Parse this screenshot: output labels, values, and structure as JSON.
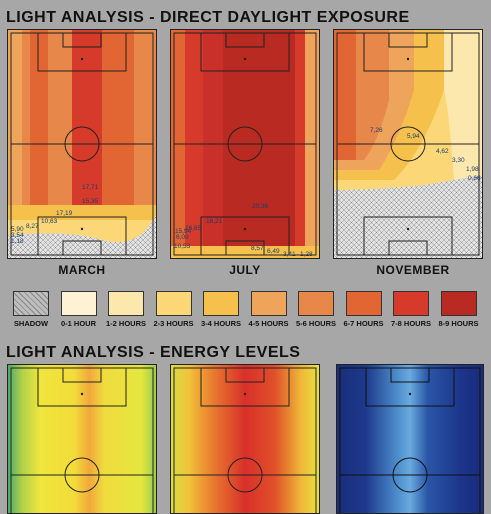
{
  "direct_title": "LIGHT ANALYSIS - DIRECT DAYLIGHT EXPOSURE",
  "energy_title": "LIGHT ANALYSIS - ENERGY LEVELS",
  "months": [
    "MARCH",
    "JULY",
    "NOVEMBER"
  ],
  "legend": [
    {
      "label": "SHADOW",
      "color": "#dcdcdc"
    },
    {
      "label": "0-1 HOUR",
      "color": "#fdf2d4"
    },
    {
      "label": "1-2 HOURS",
      "color": "#fce7ad"
    },
    {
      "label": "2-3 HOURS",
      "color": "#fbd777"
    },
    {
      "label": "3-4 HOURS",
      "color": "#f6c04d"
    },
    {
      "label": "4-5 HOURS",
      "color": "#eea45a"
    },
    {
      "label": "5-6 HOURS",
      "color": "#e8874a"
    },
    {
      "label": "6-7 HOURS",
      "color": "#e16634"
    },
    {
      "label": "7-8 HOURS",
      "color": "#d63a2a"
    },
    {
      "label": "8-9 HOURS",
      "color": "#b82a22"
    }
  ],
  "annotations": {
    "march": [
      "17,71",
      "15,35",
      "17,19",
      "10,63",
      "8,27",
      "5,90",
      "3,54",
      "1,18"
    ],
    "july": [
      "20,36",
      "18,21",
      "16,65",
      "15,94",
      "6,09",
      "10,53",
      "8,57",
      "6,49",
      "3,41",
      "1,28"
    ],
    "november": [
      "7,26",
      "5,94",
      "4,62",
      "3,30",
      "1,98",
      "0,66"
    ]
  }
}
